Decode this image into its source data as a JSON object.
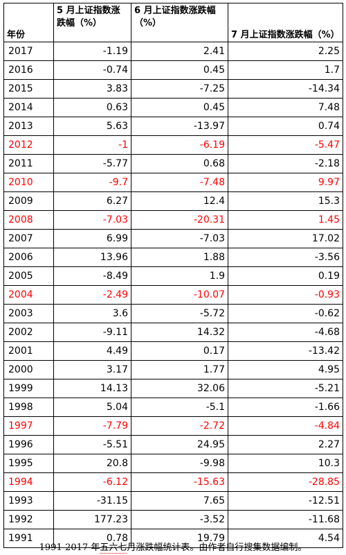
{
  "headers": {
    "year": "年份",
    "may": "5 月上证指数涨跌幅（%）",
    "jun": "6 月上证指数涨跌幅（%）",
    "jul": "7 月上证指数涨跌幅（%）"
  },
  "rows": [
    {
      "year": "2017",
      "may": "-1.19",
      "jun": "2.41",
      "jul": "2.25",
      "highlight": false
    },
    {
      "year": "2016",
      "may": "-0.74",
      "jun": "0.45",
      "jul": "1.7",
      "highlight": false
    },
    {
      "year": "2015",
      "may": "3.83",
      "jun": "-7.25",
      "jul": "-14.34",
      "highlight": false
    },
    {
      "year": "2014",
      "may": "0.63",
      "jun": "0.45",
      "jul": "7.48",
      "highlight": false
    },
    {
      "year": "2013",
      "may": "5.63",
      "jun": "-13.97",
      "jul": "0.74",
      "highlight": false
    },
    {
      "year": "2012",
      "may": "-1",
      "jun": "-6.19",
      "jul": "-5.47",
      "highlight": true
    },
    {
      "year": "2011",
      "may": "-5.77",
      "jun": "0.68",
      "jul": "-2.18",
      "highlight": false
    },
    {
      "year": "2010",
      "may": "-9.7",
      "jun": "-7.48",
      "jul": "9.97",
      "highlight": true
    },
    {
      "year": "2009",
      "may": "6.27",
      "jun": "12.4",
      "jul": "15.3",
      "highlight": false
    },
    {
      "year": "2008",
      "may": "-7.03",
      "jun": "-20.31",
      "jul": "1.45",
      "highlight": true
    },
    {
      "year": "2007",
      "may": "6.99",
      "jun": "-7.03",
      "jul": "17.02",
      "highlight": false
    },
    {
      "year": "2006",
      "may": "13.96",
      "jun": "1.88",
      "jul": "-3.56",
      "highlight": false
    },
    {
      "year": "2005",
      "may": "-8.49",
      "jun": "1.9",
      "jul": "0.19",
      "highlight": false
    },
    {
      "year": "2004",
      "may": "-2.49",
      "jun": "-10.07",
      "jul": "-0.93",
      "highlight": true
    },
    {
      "year": "2003",
      "may": "3.6",
      "jun": "-5.72",
      "jul": "-0.62",
      "highlight": false
    },
    {
      "year": "2002",
      "may": "-9.11",
      "jun": "14.32",
      "jul": "-4.68",
      "highlight": false
    },
    {
      "year": "2001",
      "may": "4.49",
      "jun": "0.17",
      "jul": "-13.42",
      "highlight": false
    },
    {
      "year": "2000",
      "may": "3.17",
      "jun": "1.77",
      "jul": "4.95",
      "highlight": false
    },
    {
      "year": "1999",
      "may": "14.13",
      "jun": "32.06",
      "jul": "-5.21",
      "highlight": false
    },
    {
      "year": "1998",
      "may": "5.04",
      "jun": "-5.1",
      "jul": "-1.66",
      "highlight": false
    },
    {
      "year": "1997",
      "may": "-7.79",
      "jun": "-2.72",
      "jul": "-4.84",
      "highlight": true
    },
    {
      "year": "1996",
      "may": "-5.51",
      "jun": "24.95",
      "jul": "2.27",
      "highlight": false
    },
    {
      "year": "1995",
      "may": "20.8",
      "jun": "-9.98",
      "jul": "10.3",
      "highlight": false
    },
    {
      "year": "1994",
      "may": "-6.12",
      "jun": "-15.63",
      "jul": "-28.85",
      "highlight": true
    },
    {
      "year": "1993",
      "may": "-31.15",
      "jun": "7.65",
      "jul": "-12.51",
      "highlight": false
    },
    {
      "year": "1992",
      "may": "177.23",
      "jun": "-3.52",
      "jul": "-11.68",
      "highlight": false
    },
    {
      "year": "1991",
      "may": "0.78",
      "jun": "19.79",
      "jul": "4.54",
      "highlight": false
    }
  ],
  "caption": {
    "before": "1991-2017 年",
    "underlined": "五六七",
    "after": "月涨跌幅统计表。由作者自行搜集数据编制。"
  },
  "colors": {
    "highlight": "#ff0000",
    "text": "#000000"
  }
}
